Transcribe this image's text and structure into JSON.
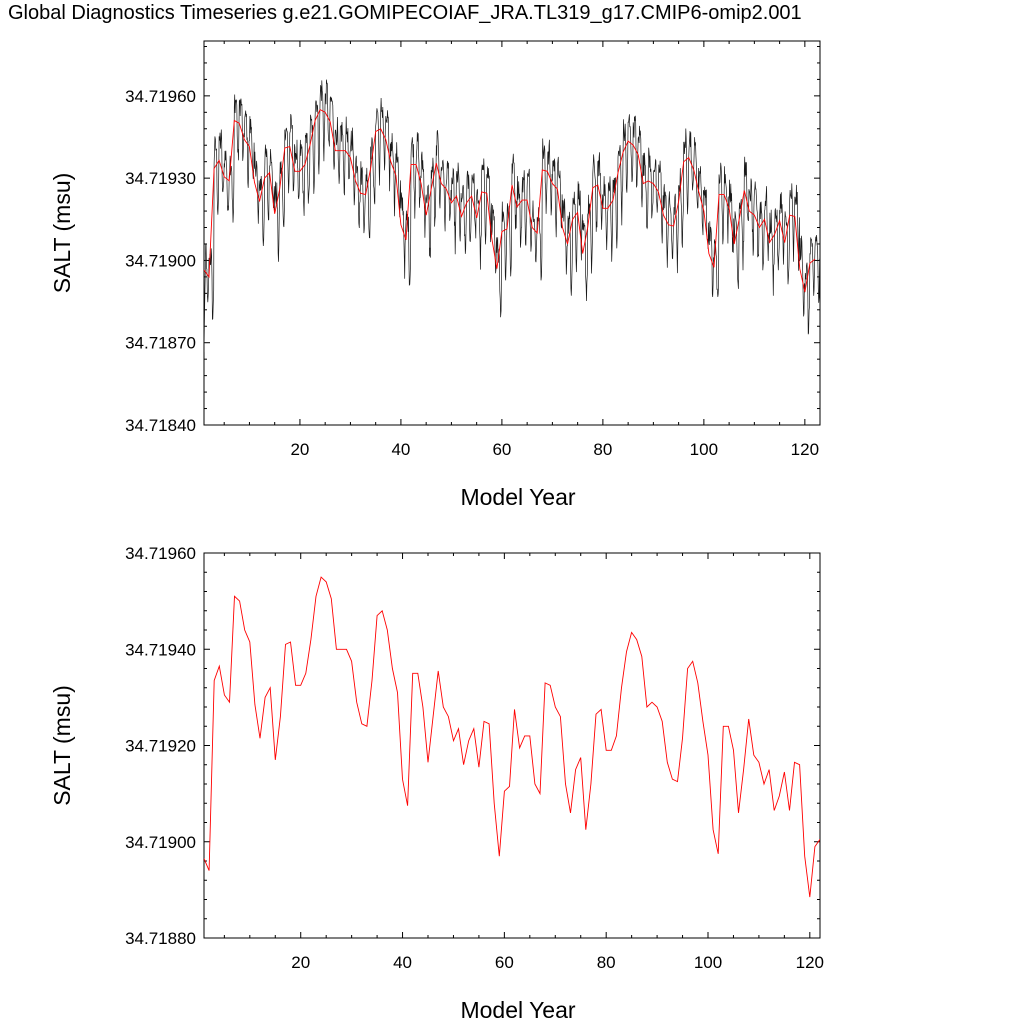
{
  "title": "Global Diagnostics Timeseries g.e21.GOMIPECOIAF_JRA.TL319_g17.CMIP6-omip2.001",
  "colors": {
    "monthly": "#1a1a1a",
    "annual": "#ff0000",
    "axis": "#000000"
  },
  "chart_data": [
    {
      "type": "line",
      "xlabel": "Model Year",
      "ylabel": "SALT (msu)",
      "xlim": [
        1,
        123
      ],
      "ylim": [
        34.7184,
        34.7198
      ],
      "xticks": [
        20,
        40,
        60,
        80,
        100,
        120
      ],
      "yticks": [
        "34.71840",
        "34.71870",
        "34.71900",
        "34.71930",
        "34.71960"
      ],
      "ytick_values": [
        34.7184,
        34.7187,
        34.719,
        34.7193,
        34.7196
      ],
      "grid": false,
      "series": [
        {
          "color": "#1a1a1a",
          "kind": "monthly",
          "values_ref": "annual"
        },
        {
          "color": "#ff0000",
          "kind": "annual",
          "values_ref": "annual"
        }
      ]
    },
    {
      "type": "line",
      "xlabel": "Model Year",
      "ylabel": "SALT (msu)",
      "xlim": [
        1,
        122
      ],
      "ylim": [
        34.7188,
        34.7196
      ],
      "xticks": [
        20,
        40,
        60,
        80,
        100,
        120
      ],
      "yticks": [
        "34.71880",
        "34.71900",
        "34.71920",
        "34.71940",
        "34.71960"
      ],
      "ytick_values": [
        34.7188,
        34.719,
        34.7192,
        34.7194,
        34.7196
      ],
      "grid": false,
      "x": [
        1,
        2,
        3,
        4,
        5,
        6,
        7,
        8,
        9,
        10,
        11,
        12,
        13,
        14,
        15,
        16,
        17,
        18,
        19,
        20,
        21,
        22,
        23,
        24,
        25,
        26,
        27,
        28,
        29,
        30,
        31,
        32,
        33,
        34,
        35,
        36,
        37,
        38,
        39,
        40,
        41,
        42,
        43,
        44,
        45,
        46,
        47,
        48,
        49,
        50,
        51,
        52,
        53,
        54,
        55,
        56,
        57,
        58,
        59,
        60,
        61,
        62,
        63,
        64,
        65,
        66,
        67,
        68,
        69,
        70,
        71,
        72,
        73,
        74,
        75,
        76,
        77,
        78,
        79,
        80,
        81,
        82,
        83,
        84,
        85,
        86,
        87,
        88,
        89,
        90,
        91,
        92,
        93,
        94,
        95,
        96,
        97,
        98,
        99,
        100,
        101,
        102,
        103,
        104,
        105,
        106,
        107,
        108,
        109,
        110,
        111,
        112,
        113,
        114,
        115,
        116,
        117,
        118,
        119,
        120,
        121,
        122
      ],
      "series": [
        {
          "color": "#ff0000",
          "kind": "annual",
          "values": [
            34.718965,
            34.71894,
            34.719335,
            34.719365,
            34.719305,
            34.71929,
            34.71951,
            34.7195,
            34.71944,
            34.719415,
            34.719285,
            34.719215,
            34.7193,
            34.71932,
            34.71917,
            34.71926,
            34.71941,
            34.719415,
            34.719325,
            34.719325,
            34.71935,
            34.71942,
            34.71951,
            34.71955,
            34.71954,
            34.719505,
            34.7194,
            34.7194,
            34.7194,
            34.719375,
            34.71929,
            34.719245,
            34.71924,
            34.719335,
            34.71947,
            34.71948,
            34.71944,
            34.71936,
            34.71931,
            34.71913,
            34.719075,
            34.71935,
            34.71935,
            34.71928,
            34.719165,
            34.71926,
            34.719355,
            34.71928,
            34.71926,
            34.71921,
            34.719235,
            34.71916,
            34.71921,
            34.719235,
            34.719155,
            34.71925,
            34.719245,
            34.71908,
            34.71897,
            34.719105,
            34.719115,
            34.719275,
            34.719195,
            34.71922,
            34.71922,
            34.71912,
            34.7191,
            34.71933,
            34.719325,
            34.71928,
            34.71926,
            34.71912,
            34.71906,
            34.71915,
            34.719175,
            34.719025,
            34.71912,
            34.719265,
            34.719275,
            34.71919,
            34.71919,
            34.71922,
            34.71932,
            34.719395,
            34.719435,
            34.71942,
            34.719385,
            34.71928,
            34.71929,
            34.71928,
            34.71925,
            34.719165,
            34.71913,
            34.719125,
            34.719215,
            34.71936,
            34.719375,
            34.71933,
            34.71925,
            34.71918,
            34.719025,
            34.718975,
            34.71924,
            34.71924,
            34.71919,
            34.71906,
            34.71915,
            34.719255,
            34.71918,
            34.719165,
            34.71912,
            34.71915,
            34.719065,
            34.719095,
            34.719145,
            34.719065,
            34.719165,
            34.71916,
            34.71897,
            34.718885,
            34.71899,
            34.719005
          ]
        }
      ]
    }
  ]
}
